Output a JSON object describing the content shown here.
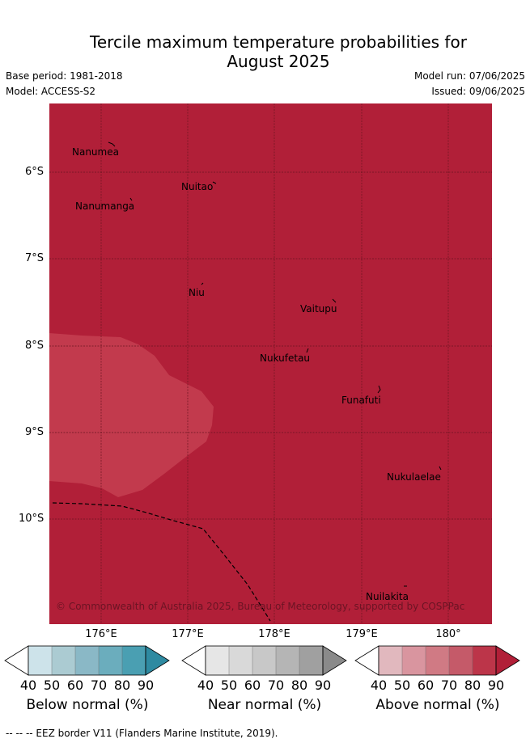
{
  "title": "Tercile maximum temperature probabilities for August 2025",
  "title_line1": "Tercile maximum temperature probabilities for",
  "title_line2": "August 2025",
  "base_period": "Base period: 1981-2018",
  "model": "Model: ACCESS-S2",
  "model_run": "Model run: 07/06/2025",
  "issued": "Issued: 09/06/2025",
  "map": {
    "lat_labels": [
      "6°S",
      "7°S",
      "8°S",
      "9°S",
      "10°S"
    ],
    "lon_labels": [
      "176°E",
      "177°E",
      "178°E",
      "179°E",
      "180°"
    ],
    "places": [
      {
        "name": "Nanumea"
      },
      {
        "name": "Nuitao"
      },
      {
        "name": "Nanumanga"
      },
      {
        "name": "Niu"
      },
      {
        "name": "Vaitupu"
      },
      {
        "name": "Nukufetau"
      },
      {
        "name": "Funafuti"
      },
      {
        "name": "Nukulaelae"
      },
      {
        "name": "Nuilakita"
      }
    ],
    "copyright": "© Commonwealth of Australia 2025, Bureau of Meteorology, supported by COSPPac",
    "background_category": "Above normal",
    "background_color": "#b11f38",
    "patch_color": "#c23a4d"
  },
  "colorbars": [
    {
      "label": "Below normal (%)",
      "ticks": [
        "40",
        "50",
        "60",
        "70",
        "80",
        "90"
      ],
      "colors": [
        "#ffffff",
        "#cde3ea",
        "#abcbd2",
        "#8ab8c6",
        "#6badbd",
        "#4a9fb2",
        "#2e8aa1"
      ]
    },
    {
      "label": "Near normal (%)",
      "ticks": [
        "40",
        "50",
        "60",
        "70",
        "80",
        "90"
      ],
      "colors": [
        "#ffffff",
        "#e6e6e6",
        "#d9d9d9",
        "#c8c8c8",
        "#b5b5b5",
        "#a0a0a0",
        "#8a8a8a"
      ]
    },
    {
      "label": "Above normal (%)",
      "ticks": [
        "40",
        "50",
        "60",
        "70",
        "80",
        "90"
      ],
      "colors": [
        "#ffffff",
        "#e1b8be",
        "#d9959f",
        "#d07a84",
        "#c55a69",
        "#bc3549",
        "#b11f38"
      ]
    }
  ],
  "footer": "--  --  -- EEZ border V11 (Flanders Marine Institute, 2019)."
}
